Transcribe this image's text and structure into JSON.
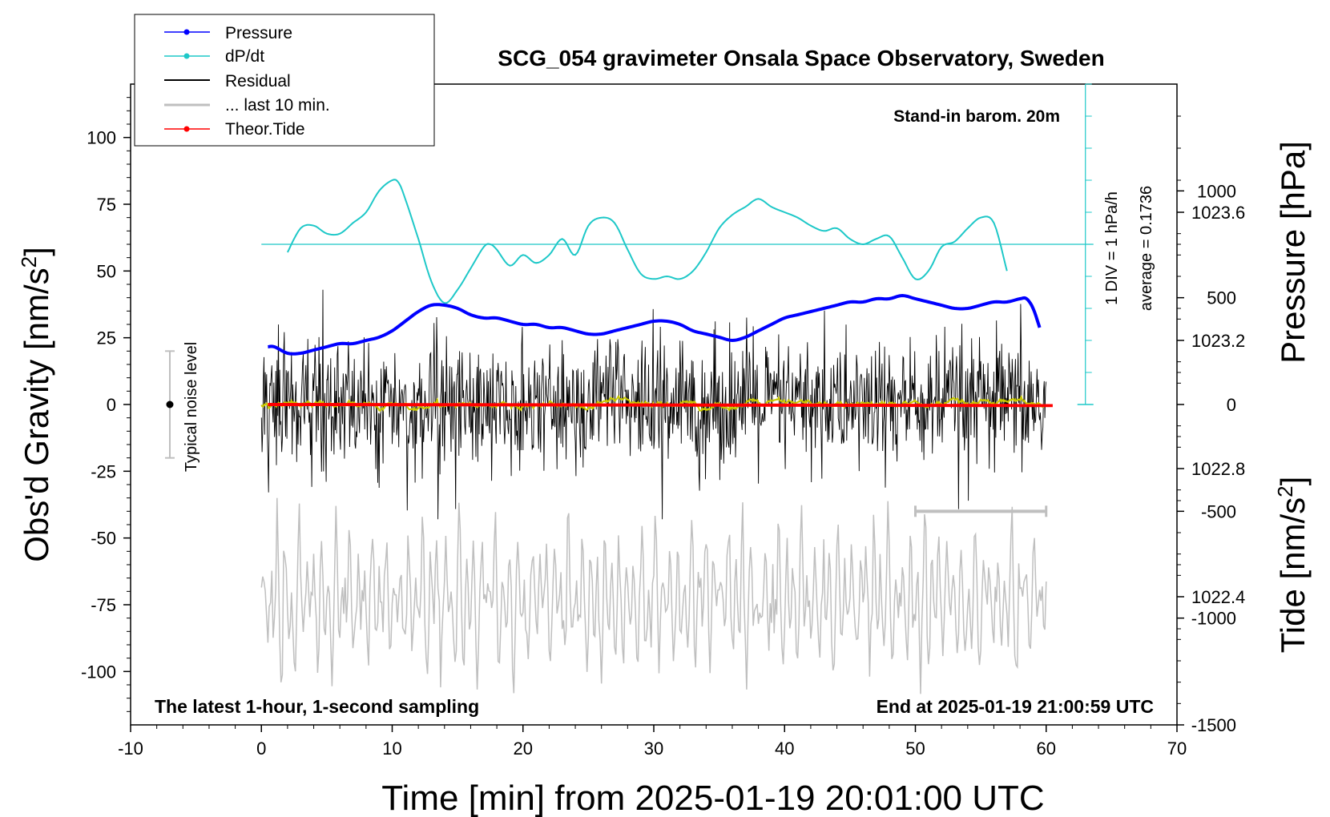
{
  "chart_data": {
    "type": "line",
    "title": "SCG_054 gravimeter Onsala Space Observatory, Sweden",
    "xlabel": "Time [min] from 2025-01-19 20:01:00 UTC",
    "ylabel_left_main": "Obs'd Gravity [nm/s",
    "ylabel_left_sup": "2",
    "ylabel_left_close": "]",
    "ylabel_right_top": "Pressure [hPa]",
    "ylabel_right_bottom_main": "Tide [nm/s",
    "ylabel_right_bottom_sup": "2",
    "ylabel_right_bottom_close": "]",
    "xlim": [
      -10,
      70
    ],
    "ylim": [
      -120,
      120
    ],
    "pressure_lim": [
      1022.0,
      1024.0
    ],
    "tide_lim": [
      -1500,
      1500
    ],
    "x_ticks": [
      -10,
      0,
      10,
      20,
      30,
      40,
      50,
      60,
      70
    ],
    "x_tick_labels": [
      "-10",
      "0",
      "10",
      "20",
      "30",
      "40",
      "50",
      "60",
      "70"
    ],
    "y_ticks": [
      100,
      75,
      50,
      25,
      0,
      -25,
      -50,
      -75,
      -100
    ],
    "y_tick_labels": [
      "100",
      "75",
      "50",
      "25",
      "0",
      "-25",
      "-50",
      "-75",
      "-100"
    ],
    "pressure_ticks": [
      1023.6,
      1023.2,
      1022.8,
      1022.4
    ],
    "pressure_tick_labels": [
      "1023.6",
      "1023.2",
      "1022.8",
      "1022.4"
    ],
    "tide_ticks": [
      1000,
      500,
      0,
      -500,
      -1000,
      -1500
    ],
    "tide_tick_labels": [
      "1000",
      "500",
      "0",
      "-500",
      "-1000",
      "-1500"
    ],
    "annotations": {
      "stand_in": "Stand-in barom. 20m",
      "latest": "The latest 1-hour, 1-second sampling",
      "end_at": "End at 2025-01-19 21:00:59 UTC",
      "noise": "Typical noise level",
      "div": "1 DIV = 1 hPa/h",
      "average": "average = 0.1736"
    },
    "legend": {
      "placement": "top-left",
      "entries": [
        "Pressure",
        "dP/dt",
        "Residual",
        "... last 10 min.",
        "Theor.Tide"
      ]
    },
    "colors": {
      "pressure": "#0000ff",
      "dpdt": "#1ec8c8",
      "residual": "#000000",
      "last10": "#bfbfbf",
      "tide": "#ff0000",
      "smooth": "#c8c800"
    },
    "noise_level": {
      "x": -7,
      "y": 0,
      "low": -20,
      "high": 20
    },
    "last10_bar": {
      "x0": 50,
      "x1": 60,
      "y": -40
    },
    "dpdt_baseline": {
      "x0": 0,
      "x1": 63,
      "y": 60
    },
    "dpdt_scale": {
      "x": 63,
      "y0": 0,
      "y1": 120,
      "step": 12
    },
    "series": [
      {
        "name": "Pressure",
        "axis": "pressure",
        "x": [
          0.5,
          1,
          2,
          3,
          4,
          5,
          6,
          7,
          8,
          9,
          10,
          11,
          12,
          13,
          14,
          15,
          16,
          17,
          18,
          19,
          20,
          21,
          22,
          23,
          24,
          25,
          26,
          27,
          28,
          29,
          30,
          31,
          32,
          33,
          34,
          35,
          36,
          37,
          38,
          39,
          40,
          41,
          42,
          43,
          44,
          45,
          46,
          47,
          48,
          49,
          50,
          51,
          52,
          53,
          54,
          55,
          56,
          57,
          58,
          58.5,
          59,
          59.5
        ],
        "values": [
          1023.18,
          1023.18,
          1023.16,
          1023.16,
          1023.17,
          1023.18,
          1023.19,
          1023.19,
          1023.2,
          1023.21,
          1023.23,
          1023.26,
          1023.29,
          1023.31,
          1023.31,
          1023.3,
          1023.28,
          1023.27,
          1023.27,
          1023.26,
          1023.25,
          1023.25,
          1023.24,
          1023.24,
          1023.23,
          1023.22,
          1023.22,
          1023.23,
          1023.24,
          1023.25,
          1023.26,
          1023.26,
          1023.25,
          1023.23,
          1023.22,
          1023.21,
          1023.2,
          1023.21,
          1023.23,
          1023.25,
          1023.27,
          1023.28,
          1023.29,
          1023.3,
          1023.31,
          1023.32,
          1023.32,
          1023.33,
          1023.33,
          1023.34,
          1023.33,
          1023.32,
          1023.31,
          1023.3,
          1023.3,
          1023.31,
          1023.32,
          1023.32,
          1023.33,
          1023.33,
          1023.3,
          1023.24
        ]
      },
      {
        "name": "dP/dt",
        "axis": "gravity",
        "x": [
          2,
          3,
          4,
          5,
          6,
          7,
          8,
          9,
          10,
          10.5,
          11,
          12,
          13,
          14,
          15,
          16,
          17,
          17.5,
          18,
          19,
          20,
          21,
          22,
          23,
          24,
          25,
          26,
          27,
          28,
          29,
          30,
          31,
          32,
          33,
          34,
          35,
          36,
          37,
          38,
          39,
          40,
          41,
          42,
          43,
          44,
          45,
          46,
          47,
          48,
          49,
          50,
          51,
          52,
          53,
          54,
          55,
          56,
          57
        ],
        "values": [
          57,
          66,
          67,
          64,
          64,
          68,
          72,
          80,
          84,
          83,
          77,
          62,
          46,
          38,
          43,
          51,
          59,
          60,
          58,
          52,
          56,
          53,
          56,
          62,
          56,
          67,
          70,
          68,
          58,
          49,
          47,
          48,
          47,
          50,
          57,
          66,
          71,
          74,
          77,
          74,
          72,
          70,
          67,
          65,
          66,
          62,
          60,
          62,
          63,
          55,
          47,
          50,
          59,
          61,
          66,
          70,
          68,
          50
        ]
      },
      {
        "name": "Residual",
        "axis": "gravity",
        "x_range": [
          0,
          60
        ],
        "sample_interval_min": 0.05,
        "amplitude_std": 12,
        "max_abs": 43
      },
      {
        "name": "... last 10 min.",
        "axis": "gravity",
        "x_range": [
          0,
          60
        ],
        "center": -73,
        "amplitude": 20,
        "max_abs_deviation": 38
      },
      {
        "name": "Theor.Tide",
        "axis": "tide",
        "x": [
          0.5,
          60.5
        ],
        "values": [
          0,
          -5
        ]
      }
    ]
  }
}
